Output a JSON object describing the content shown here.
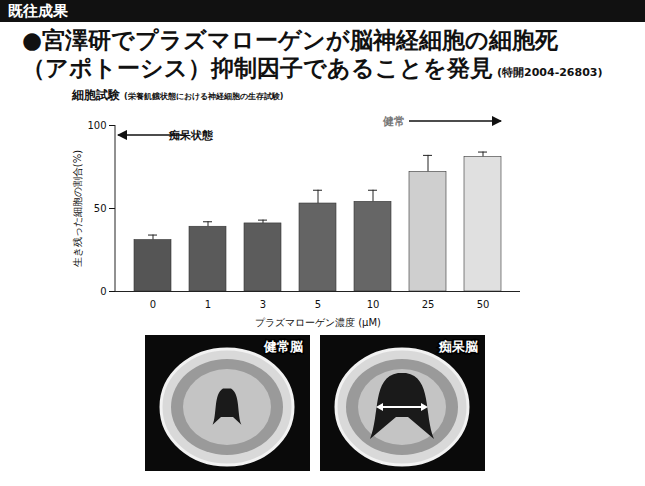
{
  "header": "既往成果",
  "title": [
    "●宮澤研でプラズマローゲンが脳神経細胞の細胞死",
    "（アポトーシス）抑制因子であることを発見"
  ],
  "patent": "(特開2004-26803)",
  "chart_data": {
    "type": "bar",
    "title": "細胞試験",
    "subtitle": "(栄養飢餓状態における神経細胞の生存試験)",
    "x_label": "プラズマローゲン濃度 (μM)",
    "y_label": "生き残った細胞の割合(%)",
    "categories": [
      "0",
      "1",
      "3",
      "5",
      "10",
      "25",
      "50"
    ],
    "values": [
      31,
      39,
      41,
      53,
      54,
      72,
      81
    ],
    "errors": [
      3,
      3,
      2,
      8,
      7,
      10,
      3
    ],
    "colors": [
      "#555555",
      "#5a5a5a",
      "#5c5c5c",
      "#646464",
      "#666666",
      "#cfcfcf",
      "#e0e0e0"
    ],
    "annotations": [
      "痴呆状態",
      "健常"
    ],
    "ylim": [
      0,
      100
    ],
    "yticks": [
      0,
      50,
      100
    ],
    "grid": false
  },
  "images": [
    "健常脳",
    "痴呆脳"
  ]
}
